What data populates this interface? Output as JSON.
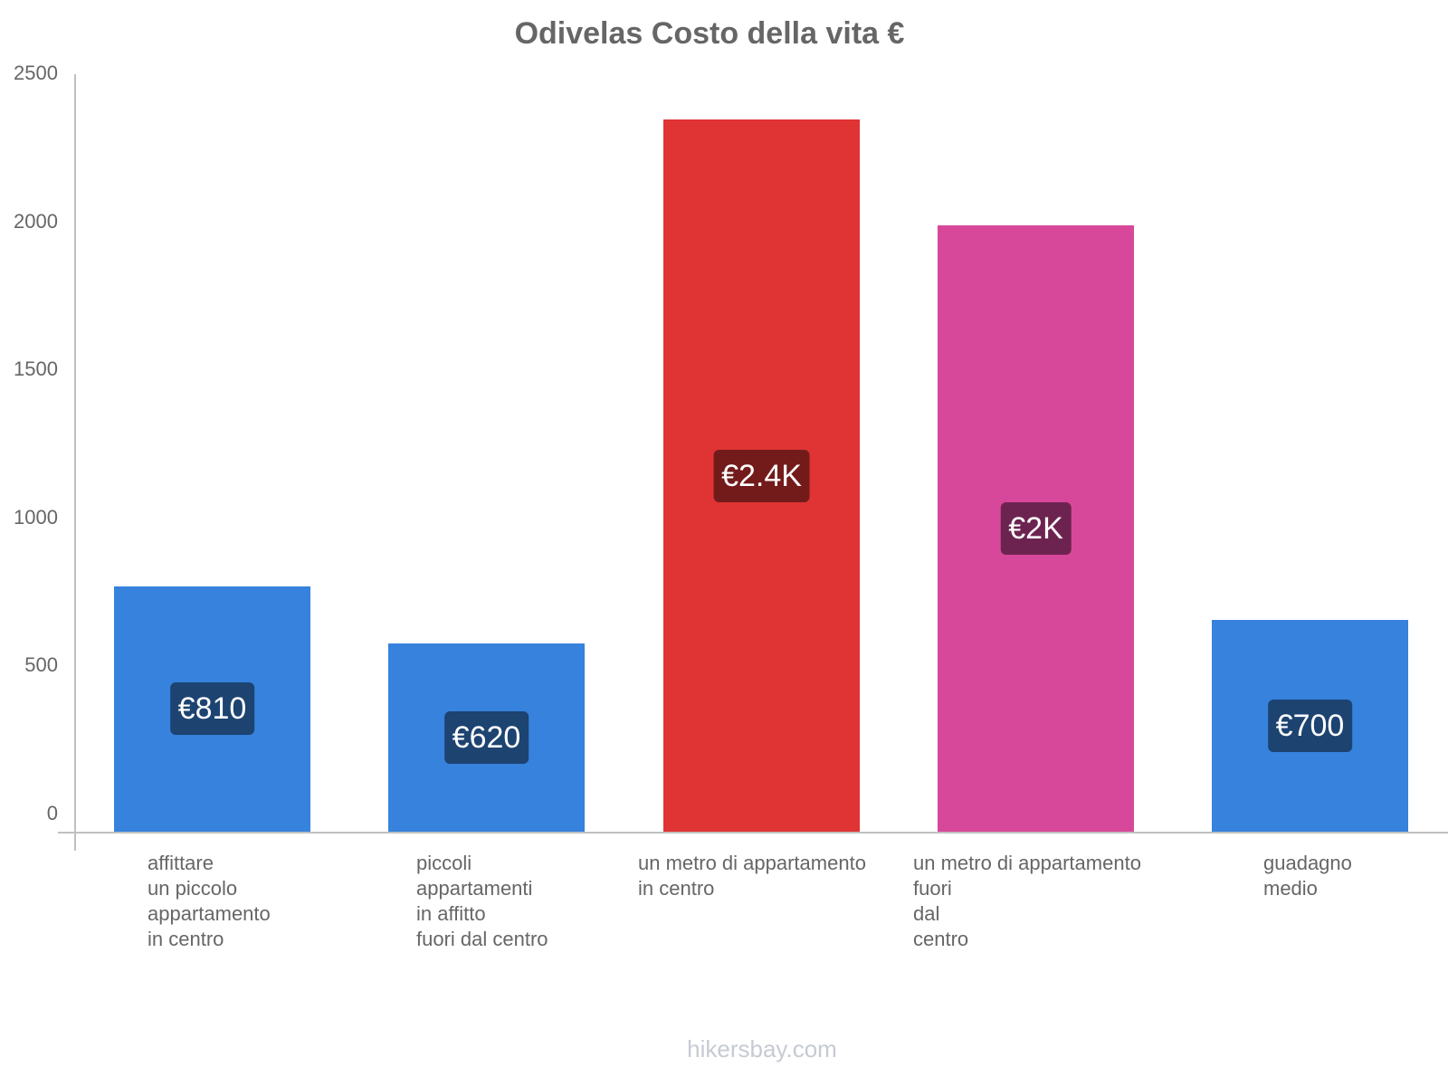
{
  "chart_data": {
    "type": "bar",
    "title": "Odivelas Costo della vita €",
    "xlabel": "",
    "ylabel": "",
    "ylim": [
      0,
      2500
    ],
    "yticks": [
      0,
      500,
      1000,
      1500,
      2000,
      2500
    ],
    "grid": false,
    "legend": null,
    "categories": [
      "affittare\nun piccolo\nappartamento\nin centro",
      "piccoli\nappartamenti\nin affitto\nfuori dal centro",
      "un metro di appartamento\nin centro",
      "un metro di appartamento\nfuori\ndal\ncentro",
      "guadagno\nmedio"
    ],
    "values": [
      810,
      620,
      2350,
      2000,
      700
    ],
    "value_labels": [
      "€810",
      "€620",
      "€2.4K",
      "€2K",
      "€700"
    ],
    "bar_colors": [
      "#3682dc",
      "#3682dc",
      "#e03434",
      "#d8489a",
      "#3682dc"
    ],
    "label_colors": [
      "#1d4371",
      "#1d4371",
      "#731b1b",
      "#6d2350",
      "#1d4371"
    ]
  },
  "yticks_text": [
    "2500",
    "2000",
    "1500",
    "1000",
    "500",
    "0"
  ],
  "footer": "hikersbay.com"
}
